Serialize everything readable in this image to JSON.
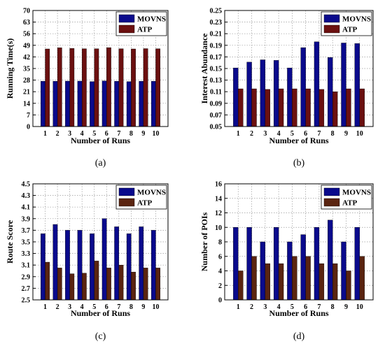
{
  "figure": {
    "chart_data": [
      {
        "type": "bar",
        "panel": "(a)",
        "caption": "(a)",
        "xlabel": "Number of Runs",
        "ylabel": "Running Time(s)",
        "categories": [
          "1",
          "2",
          "3",
          "4",
          "5",
          "6",
          "7",
          "8",
          "9",
          "10"
        ],
        "ylim": [
          0,
          70
        ],
        "yticks": [
          "0",
          "7",
          "14",
          "21",
          "28",
          "35",
          "42",
          "49",
          "56",
          "63",
          "70"
        ],
        "legend": "top-right",
        "grid": true,
        "series": [
          {
            "name": "MOVNS",
            "color": "#0a0a8c",
            "values": [
              27.3,
              27.3,
              27.4,
              27.4,
              27.1,
              27.5,
              27.3,
              27.1,
              27.3,
              27.3
            ]
          },
          {
            "name": "ATP",
            "color": "#6b1010",
            "values": [
              46.8,
              47.5,
              47.1,
              46.9,
              46.9,
              47.6,
              46.9,
              46.8,
              47.0,
              46.9
            ]
          }
        ]
      },
      {
        "type": "bar",
        "panel": "(b)",
        "caption": "(b)",
        "xlabel": "Number of Runs",
        "ylabel": "Interest Abundance",
        "categories": [
          "1",
          "2",
          "3",
          "4",
          "5",
          "6",
          "7",
          "8",
          "9",
          "10"
        ],
        "ylim": [
          0.05,
          0.25
        ],
        "yticks": [
          "0.05",
          "0.07",
          "0.09",
          "0.11",
          "0.13",
          "0.15",
          "0.17",
          "0.19",
          "0.21",
          "0.23",
          "0.25"
        ],
        "legend": "top-right",
        "grid": true,
        "series": [
          {
            "name": "MOVNS",
            "color": "#0a0a8c",
            "values": [
              0.151,
              0.161,
              0.165,
              0.164,
              0.151,
              0.186,
              0.196,
              0.169,
              0.194,
              0.193
            ]
          },
          {
            "name": "ATP",
            "color": "#6b1010",
            "values": [
              0.115,
              0.115,
              0.114,
              0.115,
              0.115,
              0.115,
              0.114,
              0.11,
              0.115,
              0.115
            ]
          }
        ]
      },
      {
        "type": "bar",
        "panel": "(c)",
        "caption": "(c)",
        "xlabel": "Number of Runs",
        "ylabel": "Route Score",
        "categories": [
          "1",
          "2",
          "3",
          "4",
          "5",
          "6",
          "7",
          "8",
          "9",
          "10"
        ],
        "ylim": [
          2.5,
          4.5
        ],
        "yticks": [
          "2.5",
          "2.7",
          "2.9",
          "3.1",
          "3.3",
          "3.5",
          "3.7",
          "3.9",
          "4.1",
          "4.3",
          "4.5"
        ],
        "legend": "top-right",
        "grid": true,
        "series": [
          {
            "name": "MOVNS",
            "color": "#0a0a8c",
            "values": [
              3.64,
              3.8,
              3.7,
              3.7,
              3.64,
              3.9,
              3.76,
              3.64,
              3.76,
              3.7
            ]
          },
          {
            "name": "ATP",
            "color": "#5a2410",
            "values": [
              3.15,
              3.05,
              2.95,
              2.96,
              3.17,
              3.05,
              3.1,
              2.98,
              3.05,
              3.05
            ]
          }
        ]
      },
      {
        "type": "bar",
        "panel": "(d)",
        "caption": "(d)",
        "xlabel": "Number of Runs",
        "ylabel": "Number of POIs",
        "categories": [
          "1",
          "2",
          "3",
          "4",
          "5",
          "6",
          "7",
          "8",
          "9",
          "10"
        ],
        "ylim": [
          0,
          16
        ],
        "yticks": [
          "0",
          "2",
          "4",
          "6",
          "8",
          "10",
          "12",
          "14",
          "16"
        ],
        "legend": "top-right",
        "grid": true,
        "series": [
          {
            "name": "MOVNS",
            "color": "#0a0a8c",
            "values": [
              10,
              10,
              8,
              10,
              8,
              9,
              10,
              11,
              8,
              10
            ]
          },
          {
            "name": "ATP",
            "color": "#5a2410",
            "values": [
              4,
              6,
              5,
              5,
              6,
              6,
              5,
              5,
              4,
              6
            ]
          }
        ]
      }
    ]
  }
}
